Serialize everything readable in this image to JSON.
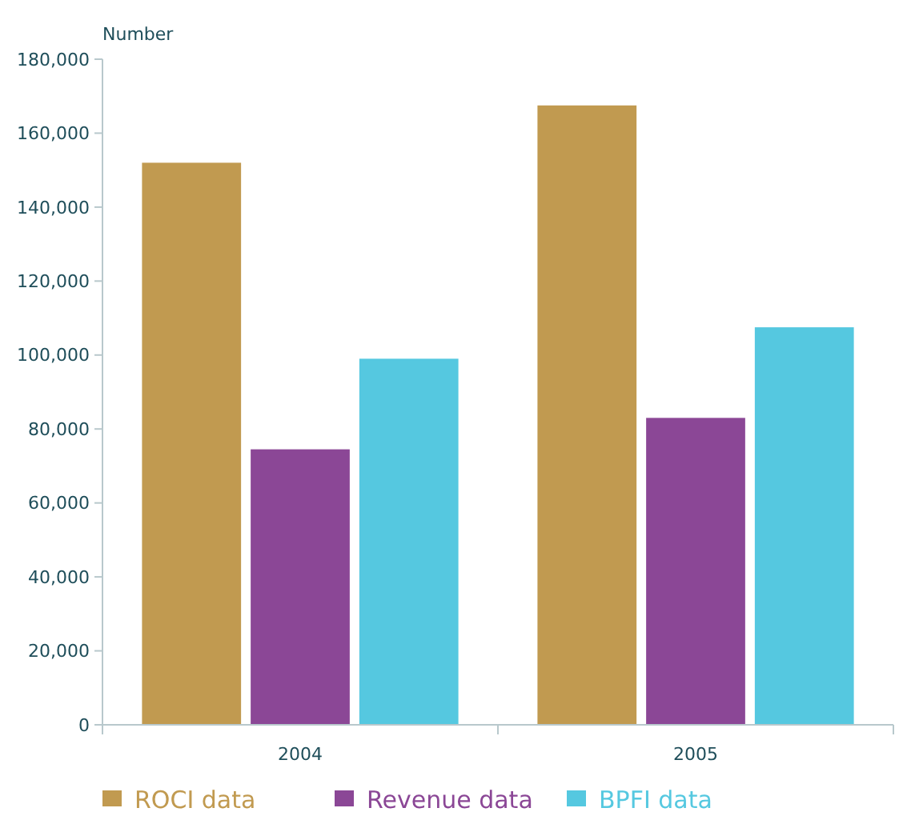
{
  "chart_data": {
    "type": "bar",
    "ylabel": "Number",
    "categories": [
      "2004",
      "2005"
    ],
    "series": [
      {
        "name": "ROCI data",
        "color": "#c19a50",
        "values": [
          152000,
          167500
        ]
      },
      {
        "name": "Revenue data",
        "color": "#8b4796",
        "values": [
          74500,
          83000
        ]
      },
      {
        "name": "BPFI data",
        "color": "#55c8e0",
        "values": [
          99000,
          107500
        ]
      }
    ],
    "ylim": [
      0,
      180000
    ],
    "yticks": [
      {
        "value": 0,
        "label": "0"
      },
      {
        "value": 20000,
        "label": "20,000"
      },
      {
        "value": 40000,
        "label": "40,000"
      },
      {
        "value": 60000,
        "label": "60,000"
      },
      {
        "value": 80000,
        "label": "80,000"
      },
      {
        "value": 100000,
        "label": "100,000"
      },
      {
        "value": 120000,
        "label": "120,000"
      },
      {
        "value": 140000,
        "label": "140,000"
      },
      {
        "value": 160000,
        "label": "160,000"
      },
      {
        "value": 180000,
        "label": "180,000"
      }
    ],
    "grid": false,
    "legend": "bottom"
  }
}
